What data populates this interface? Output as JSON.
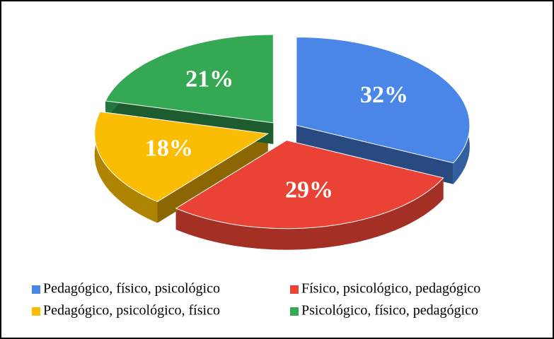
{
  "chart_data": {
    "type": "pie3d",
    "categories": [
      "Pedagógico, físico, psicológico",
      "Físico, psicológico, pedagógico",
      "Pedagógico, psicológico, físico",
      "Psicológico, físico, pedagógico"
    ],
    "values": [
      32,
      29,
      18,
      21
    ],
    "value_labels": [
      "32%",
      "29%",
      "18%",
      "21%"
    ],
    "colors": [
      "#4a86e8",
      "#ea4335",
      "#fbbc04",
      "#34a853"
    ],
    "legend": "bottom"
  }
}
